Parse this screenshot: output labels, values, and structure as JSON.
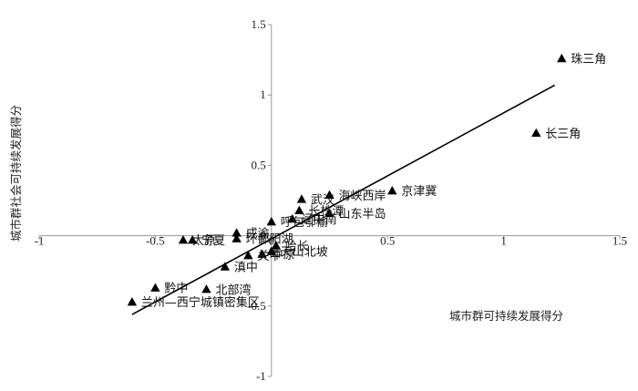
{
  "chart_data": {
    "type": "scatter",
    "title": "",
    "xlabel": "城市群可持续发展得分",
    "ylabel": "城市群社会可持续发展得分",
    "xlim": [
      -1,
      1.5
    ],
    "ylim": [
      -1,
      1.5
    ],
    "x_ticks": [
      "-1",
      "-0.5",
      "0",
      "0.5",
      "1",
      "1.5"
    ],
    "y_ticks": [
      "1.5",
      "1",
      "0.5",
      "0",
      "-0.5",
      "-1"
    ],
    "marker": "triangle",
    "grid": false,
    "trendline": {
      "type": "linear",
      "x": [
        -0.6,
        1.22
      ],
      "y": [
        -0.56,
        1.07
      ]
    },
    "points": [
      {
        "name": "珠三角",
        "x": 1.25,
        "y": 1.26
      },
      {
        "name": "长三角",
        "x": 1.14,
        "y": 0.73
      },
      {
        "name": "京津冀",
        "x": 0.52,
        "y": 0.32
      },
      {
        "name": "海峡西岸",
        "x": 0.25,
        "y": 0.29
      },
      {
        "name": "武汉",
        "x": 0.13,
        "y": 0.26
      },
      {
        "name": "长株潭",
        "x": 0.12,
        "y": 0.18
      },
      {
        "name": "山东半岛",
        "x": 0.25,
        "y": 0.16
      },
      {
        "name": "辽中南",
        "x": 0.09,
        "y": 0.12
      },
      {
        "name": "呼包鄂榆",
        "x": 0.0,
        "y": 0.1
      },
      {
        "name": "成渝",
        "x": -0.15,
        "y": 0.02
      },
      {
        "name": "宁夏",
        "x": -0.34,
        "y": -0.03
      },
      {
        "name": "太原",
        "x": -0.38,
        "y": -0.03
      },
      {
        "name": "环鄱阳湖",
        "x": -0.15,
        "y": -0.02
      },
      {
        "name": "哈长",
        "x": 0.02,
        "y": -0.07
      },
      {
        "name": "天山北坡",
        "x": 0.0,
        "y": -0.11
      },
      {
        "name": "中原",
        "x": -0.04,
        "y": -0.13
      },
      {
        "name": "关中",
        "x": -0.1,
        "y": -0.14
      },
      {
        "name": "滇中",
        "x": -0.2,
        "y": -0.22
      },
      {
        "name": "黔中",
        "x": -0.5,
        "y": -0.37
      },
      {
        "name": "北部湾",
        "x": -0.28,
        "y": -0.38
      },
      {
        "name": "兰州—西宁城镇密集区",
        "x": -0.6,
        "y": -0.47
      }
    ]
  }
}
